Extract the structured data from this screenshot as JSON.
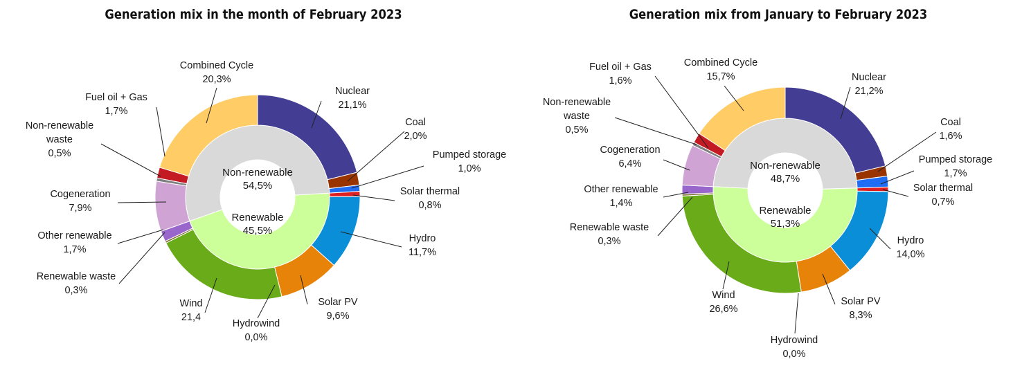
{
  "colors": {
    "non_renewable_inner": "#d9d9d9",
    "renewable_inner": "#ccff99",
    "nuclear": "#433e93",
    "coal": "#993300",
    "pumped_storage": "#1f6cf5",
    "solar_thermal": "#e02020",
    "hydro": "#0a8ed8",
    "solar_pv": "#e8830a",
    "hydrowind": "#bfbfbf",
    "wind": "#6aab1a",
    "renewable_waste": "#7a6b2b",
    "other_renewable": "#9966cc",
    "cogeneration": "#cfa4d4",
    "non_renewable_waste": "#7f7f7f",
    "fuel_gas": "#c41a24",
    "combined_cycle": "#ffcc66"
  },
  "chart_data": [
    {
      "type": "pie",
      "title": "Generation mix in the month of February 2023",
      "inner": [
        {
          "name": "Non-renewable",
          "label": "54,5%",
          "value": 54.5
        },
        {
          "name": "Renewable",
          "label": "45,5%",
          "value": 45.5
        }
      ],
      "slices": [
        {
          "key": "nuclear",
          "name": "Nuclear",
          "label": "21,1%",
          "value": 21.1
        },
        {
          "key": "coal",
          "name": "Coal",
          "label": "2,0%",
          "value": 2.0
        },
        {
          "key": "pumped_storage",
          "name": "Pumped storage",
          "label": "1,0%",
          "value": 1.0
        },
        {
          "key": "solar_thermal",
          "name": "Solar thermal",
          "label": "0,8%",
          "value": 0.8
        },
        {
          "key": "hydro",
          "name": "Hydro",
          "label": "11,7%",
          "value": 11.7
        },
        {
          "key": "solar_pv",
          "name": "Solar PV",
          "label": "9,6%",
          "value": 9.6
        },
        {
          "key": "hydrowind",
          "name": "Hydrowind",
          "label": "0,0%",
          "value": 0.0
        },
        {
          "key": "wind",
          "name": "Wind",
          "label": "21,4",
          "value": 21.4
        },
        {
          "key": "renewable_waste",
          "name": "Renewable waste",
          "label": "0,3%",
          "value": 0.3
        },
        {
          "key": "other_renewable",
          "name": "Other renewable",
          "label": "1,7%",
          "value": 1.7
        },
        {
          "key": "cogeneration",
          "name": "Cogeneration",
          "label": "7,9%",
          "value": 7.9
        },
        {
          "key": "non_renewable_waste",
          "name": "Non-renewable waste",
          "label": "0,5%",
          "value": 0.5
        },
        {
          "key": "fuel_gas",
          "name": "Fuel oil + Gas",
          "label": "1,7%",
          "value": 1.7
        },
        {
          "key": "combined_cycle",
          "name": "Combined Cycle",
          "label": "20,3%",
          "value": 20.3
        }
      ]
    },
    {
      "type": "pie",
      "title": "Generation mix from January to February 2023",
      "inner": [
        {
          "name": "Non-renewable",
          "label": "48,7%",
          "value": 48.7
        },
        {
          "name": "Renewable",
          "label": "51,3%",
          "value": 51.3
        }
      ],
      "slices": [
        {
          "key": "nuclear",
          "name": "Nuclear",
          "label": "21,2%",
          "value": 21.2
        },
        {
          "key": "coal",
          "name": "Coal",
          "label": "1,6%",
          "value": 1.6
        },
        {
          "key": "pumped_storage",
          "name": "Pumped storage",
          "label": "1,7%",
          "value": 1.7
        },
        {
          "key": "solar_thermal",
          "name": "Solar thermal",
          "label": "0,7%",
          "value": 0.7
        },
        {
          "key": "hydro",
          "name": "Hydro",
          "label": "14,0%",
          "value": 14.0
        },
        {
          "key": "solar_pv",
          "name": "Solar PV",
          "label": "8,3%",
          "value": 8.3
        },
        {
          "key": "hydrowind",
          "name": "Hydrowind",
          "label": "0,0%",
          "value": 0.0
        },
        {
          "key": "wind",
          "name": "Wind",
          "label": "26,6%",
          "value": 26.6
        },
        {
          "key": "renewable_waste",
          "name": "Renewable waste",
          "label": "0,3%",
          "value": 0.3
        },
        {
          "key": "other_renewable",
          "name": "Other renewable",
          "label": "1,4%",
          "value": 1.4
        },
        {
          "key": "cogeneration",
          "name": "Cogeneration",
          "label": "6,4%",
          "value": 6.4
        },
        {
          "key": "non_renewable_waste",
          "name": "Non-renewable waste",
          "label": "0,5%",
          "value": 0.5
        },
        {
          "key": "fuel_gas",
          "name": "Fuel oil + Gas",
          "label": "1,6%",
          "value": 1.6
        },
        {
          "key": "combined_cycle",
          "name": "Combined Cycle",
          "label": "15,7%",
          "value": 15.7
        }
      ]
    }
  ]
}
